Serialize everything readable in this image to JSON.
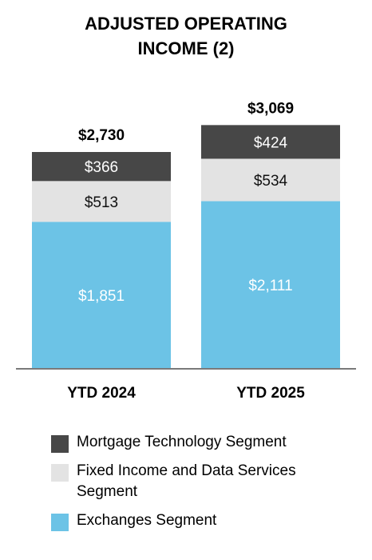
{
  "chart_data": {
    "type": "bar",
    "stacked": true,
    "title": "ADJUSTED OPERATING\nINCOME (2)",
    "categories": [
      "YTD 2024",
      "YTD 2025"
    ],
    "totals": [
      "$2,730",
      "$3,069"
    ],
    "totals_values": [
      2730,
      3069
    ],
    "series": [
      {
        "name": "Exchanges Segment",
        "values": [
          1851,
          2111
        ],
        "labels": [
          "$1,851",
          "$2,111"
        ],
        "color": "#6CC3E6",
        "label_color": "#FFFFFF"
      },
      {
        "name": "Fixed Income and Data Services\nSegment",
        "values": [
          513,
          534
        ],
        "labels": [
          "$513",
          "$534"
        ],
        "color": "#E3E3E3",
        "label_color": "#111111"
      },
      {
        "name": "Mortgage Technology Segment",
        "values": [
          366,
          424
        ],
        "labels": [
          "$366",
          "$424"
        ],
        "color": "#474747",
        "label_color": "#FFFFFF"
      }
    ],
    "legend_order": [
      2,
      1,
      0
    ],
    "legend_position": "bottom",
    "grid": false
  }
}
